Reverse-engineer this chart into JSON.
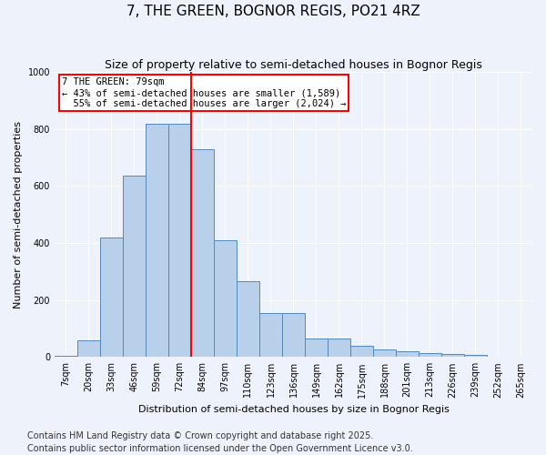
{
  "title": "7, THE GREEN, BOGNOR REGIS, PO21 4RZ",
  "subtitle": "Size of property relative to semi-detached houses in Bognor Regis",
  "xlabel": "Distribution of semi-detached houses by size in Bognor Regis",
  "ylabel": "Number of semi-detached properties",
  "categories": [
    "7sqm",
    "20sqm",
    "33sqm",
    "46sqm",
    "59sqm",
    "72sqm",
    "84sqm",
    "97sqm",
    "110sqm",
    "123sqm",
    "136sqm",
    "149sqm",
    "162sqm",
    "175sqm",
    "188sqm",
    "201sqm",
    "213sqm",
    "226sqm",
    "239sqm",
    "252sqm",
    "265sqm"
  ],
  "values": [
    5,
    60,
    420,
    635,
    820,
    820,
    730,
    410,
    265,
    155,
    155,
    65,
    65,
    40,
    28,
    20,
    15,
    10,
    8,
    2,
    1
  ],
  "bar_color": "#b8d0ea",
  "bar_edge_color": "#5588bb",
  "property_label": "7 THE GREEN: 79sqm",
  "pct_smaller": 43,
  "pct_larger": 55,
  "n_smaller": 1589,
  "n_larger": 2024,
  "vline_x_index": 5.5,
  "ylim": [
    0,
    1000
  ],
  "yticks": [
    0,
    200,
    400,
    600,
    800,
    1000
  ],
  "footer": "Contains HM Land Registry data © Crown copyright and database right 2025.\nContains public sector information licensed under the Open Government Licence v3.0.",
  "background_color": "#eef2fb",
  "grid_color": "#ffffff",
  "title_fontsize": 11,
  "subtitle_fontsize": 9,
  "axis_label_fontsize": 8,
  "tick_fontsize": 7,
  "footer_fontsize": 7,
  "annotation_fontsize": 7.5
}
